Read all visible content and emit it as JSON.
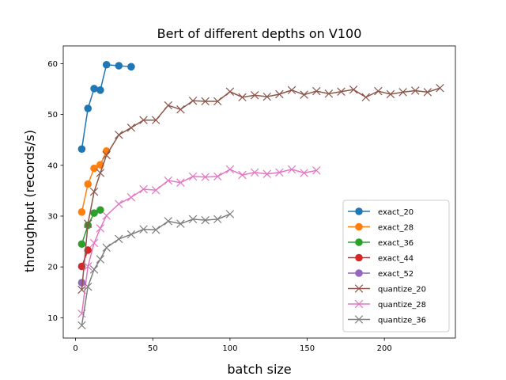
{
  "chart_data": {
    "type": "line",
    "title": "Bert of different depths on V100",
    "xlabel": "batch size",
    "ylabel": "throughput (records/s)",
    "xlim": [
      -8,
      246
    ],
    "ylim": [
      6,
      63.5
    ],
    "xticks": [
      0,
      50,
      100,
      150,
      200
    ],
    "yticks": [
      10,
      20,
      30,
      40,
      50,
      60
    ],
    "legend": "lower-right",
    "grid": false,
    "series": [
      {
        "name": "exact_20",
        "color": "#1f77b4",
        "marker": "circle",
        "x": [
          4,
          8,
          12,
          16,
          20,
          28,
          36
        ],
        "y": [
          43.2,
          51.2,
          55.1,
          54.8,
          59.8,
          59.6,
          59.4
        ]
      },
      {
        "name": "exact_28",
        "color": "#ff7f0e",
        "marker": "circle",
        "x": [
          4,
          8,
          12,
          16,
          20
        ],
        "y": [
          30.8,
          36.3,
          39.4,
          40.1,
          42.8
        ]
      },
      {
        "name": "exact_36",
        "color": "#2ca02c",
        "marker": "circle",
        "x": [
          4,
          8,
          12,
          16
        ],
        "y": [
          24.5,
          28.2,
          30.6,
          31.2
        ]
      },
      {
        "name": "exact_44",
        "color": "#d62728",
        "marker": "circle",
        "x": [
          4,
          8
        ],
        "y": [
          20.1,
          23.3
        ]
      },
      {
        "name": "exact_52",
        "color": "#9467bd",
        "marker": "circle",
        "x": [
          4
        ],
        "y": [
          16.9
        ]
      },
      {
        "name": "quantize_20",
        "color": "#8c564b",
        "marker": "x",
        "x": [
          4,
          8,
          12,
          16,
          20,
          28,
          36,
          44,
          52,
          60,
          68,
          76,
          84,
          92,
          100,
          108,
          116,
          124,
          132,
          140,
          148,
          156,
          164,
          172,
          180,
          188,
          196,
          204,
          212,
          220,
          228,
          236
        ],
        "y": [
          15.5,
          28.5,
          34.8,
          38.5,
          42.0,
          46.0,
          47.4,
          48.9,
          48.9,
          51.8,
          51.0,
          52.7,
          52.6,
          52.6,
          54.5,
          53.4,
          53.8,
          53.5,
          54.0,
          54.8,
          53.9,
          54.6,
          54.1,
          54.5,
          54.9,
          53.4,
          54.6,
          54.0,
          54.4,
          54.7,
          54.4,
          55.2
        ]
      },
      {
        "name": "quantize_28",
        "color": "#e377c2",
        "marker": "x",
        "x": [
          4,
          8,
          12,
          16,
          20,
          28,
          36,
          44,
          52,
          60,
          68,
          76,
          84,
          92,
          100,
          108,
          116,
          124,
          132,
          140,
          148,
          156
        ],
        "y": [
          10.8,
          20.1,
          24.7,
          27.6,
          30.1,
          32.4,
          33.7,
          35.3,
          35.1,
          37.0,
          36.6,
          37.8,
          37.7,
          37.8,
          39.2,
          38.1,
          38.6,
          38.3,
          38.6,
          39.2,
          38.5,
          39.0
        ]
      },
      {
        "name": "quantize_36",
        "color": "#7f7f7f",
        "marker": "x",
        "x": [
          4,
          8,
          12,
          16,
          20,
          28,
          36,
          44,
          52,
          60,
          68,
          76,
          84,
          92,
          100
        ],
        "y": [
          8.5,
          16.1,
          19.5,
          21.5,
          23.8,
          25.5,
          26.4,
          27.4,
          27.3,
          29.0,
          28.5,
          29.4,
          29.2,
          29.4,
          30.4
        ]
      }
    ]
  }
}
